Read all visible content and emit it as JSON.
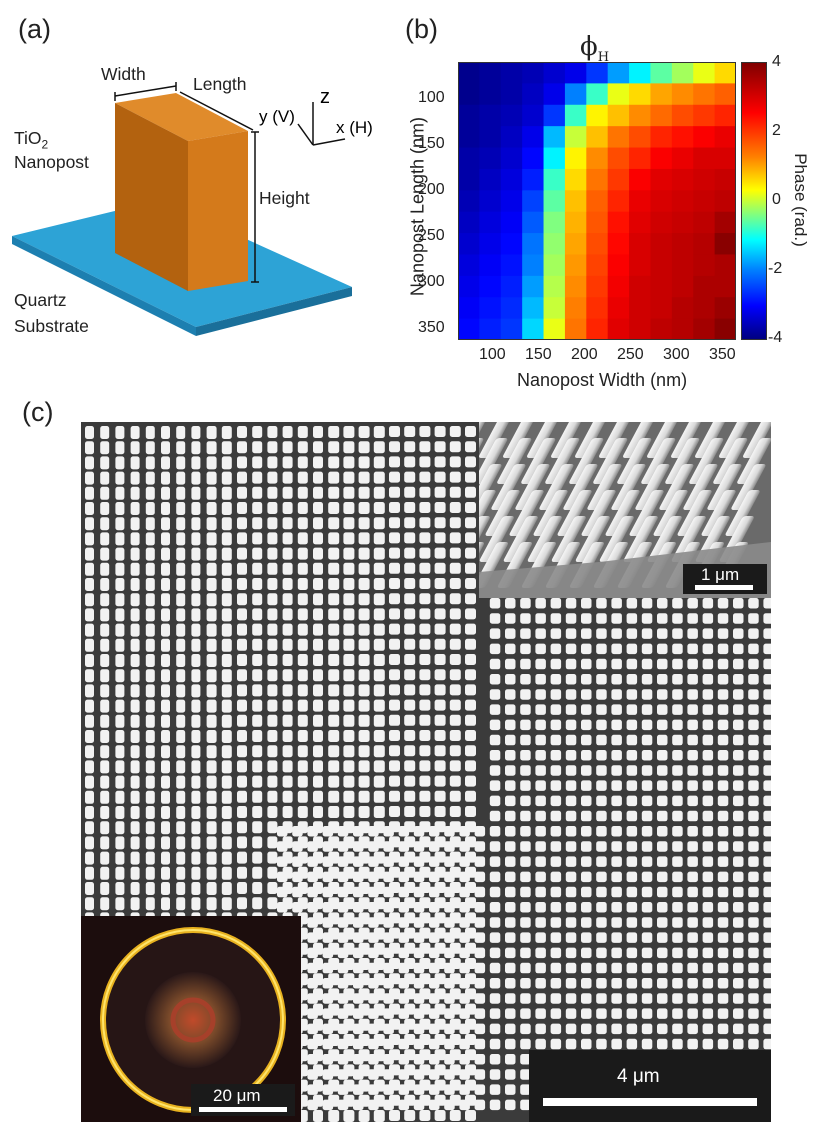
{
  "panels": {
    "a": "(a)",
    "b": "(b)",
    "c": "(c)"
  },
  "diagram": {
    "width_label": "Width",
    "length_label": "Length",
    "height_label": "Height",
    "material_line1": "TiO",
    "material_sub": "2",
    "material_line2": "Nanopost",
    "substrate_line1": "Quartz",
    "substrate_line2": "Substrate",
    "axis_z": "z",
    "axis_y": "y (V)",
    "axis_x": "x (H)",
    "colors": {
      "post_front": "#d47a1b",
      "post_side": "#b3620f",
      "post_top": "#e08b2b",
      "substrate": "#2da3d6",
      "substrate_edge": "#1d7fb0"
    }
  },
  "chart_data": {
    "type": "heatmap",
    "title": "ϕ",
    "title_sub": "H",
    "xlabel": "Nanopost Width (nm)",
    "ylabel": "Nanopost Length (nm)",
    "colorbar_label": "Phase (rad.)",
    "x_tick_labels": [
      "100",
      "150",
      "200",
      "250",
      "300",
      "350"
    ],
    "y_tick_labels": [
      "100",
      "150",
      "200",
      "250",
      "300",
      "350"
    ],
    "colorbar_ticks": [
      "4",
      "2",
      "0",
      "-2",
      "-4"
    ],
    "x": [
      50,
      75,
      100,
      125,
      150,
      175,
      200,
      225,
      250,
      275,
      300,
      325,
      350
    ],
    "y": [
      50,
      75,
      100,
      125,
      150,
      175,
      200,
      225,
      250,
      275,
      300,
      325,
      350
    ],
    "zlim": [
      -4,
      4
    ],
    "values": [
      [
        -3.9,
        -3.8,
        -3.7,
        -3.6,
        -3.4,
        -3.2,
        -2.6,
        -1.8,
        -1.2,
        -0.6,
        -0.2,
        0.2,
        0.6
      ],
      [
        -3.9,
        -3.8,
        -3.7,
        -3.5,
        -3.2,
        -2.0,
        -0.8,
        0.2,
        0.6,
        1.0,
        1.2,
        1.4,
        1.6
      ],
      [
        -3.8,
        -3.7,
        -3.6,
        -3.4,
        -2.6,
        -0.8,
        0.4,
        0.8,
        1.2,
        1.5,
        1.8,
        2.0,
        2.2
      ],
      [
        -3.8,
        -3.7,
        -3.5,
        -3.2,
        -1.6,
        0.0,
        0.8,
        1.4,
        1.8,
        2.2,
        2.4,
        2.6,
        2.8
      ],
      [
        -3.7,
        -3.6,
        -3.4,
        -3.0,
        -1.2,
        0.4,
        1.2,
        1.8,
        2.2,
        2.6,
        2.8,
        3.0,
        3.0
      ],
      [
        -3.7,
        -3.5,
        -3.3,
        -2.8,
        -0.8,
        0.6,
        1.4,
        2.0,
        2.6,
        2.9,
        3.0,
        3.1,
        3.2
      ],
      [
        -3.6,
        -3.4,
        -3.2,
        -2.5,
        -0.6,
        0.8,
        1.6,
        2.2,
        2.8,
        3.0,
        3.1,
        3.2,
        3.3
      ],
      [
        -3.5,
        -3.3,
        -3.1,
        -2.3,
        -0.4,
        0.9,
        1.7,
        2.4,
        2.9,
        3.1,
        3.2,
        3.3,
        3.6
      ],
      [
        -3.4,
        -3.2,
        -3.0,
        -2.1,
        -0.3,
        1.0,
        1.8,
        2.5,
        3.0,
        3.2,
        3.3,
        3.4,
        3.9
      ],
      [
        -3.3,
        -3.1,
        -2.9,
        -2.0,
        -0.2,
        1.1,
        1.9,
        2.6,
        3.0,
        3.2,
        3.3,
        3.4,
        3.5
      ],
      [
        -3.2,
        -3.0,
        -2.8,
        -1.8,
        -0.1,
        1.2,
        2.0,
        2.7,
        3.1,
        3.2,
        3.3,
        3.5,
        3.5
      ],
      [
        -3.1,
        -2.9,
        -2.7,
        -1.6,
        0.0,
        1.3,
        2.1,
        2.8,
        3.1,
        3.2,
        3.4,
        3.5,
        3.7
      ],
      [
        -3.0,
        -2.8,
        -2.6,
        -1.4,
        0.2,
        1.4,
        2.2,
        2.9,
        3.1,
        3.3,
        3.4,
        3.6,
        3.9
      ]
    ]
  },
  "sem": {
    "scalebar_main": "4 μm",
    "scalebar_inset_top": "1 μm",
    "scalebar_inset_bottom": "20 μm",
    "colors": {
      "background": "#3b3b3b",
      "post": "#f2f2f2"
    }
  }
}
